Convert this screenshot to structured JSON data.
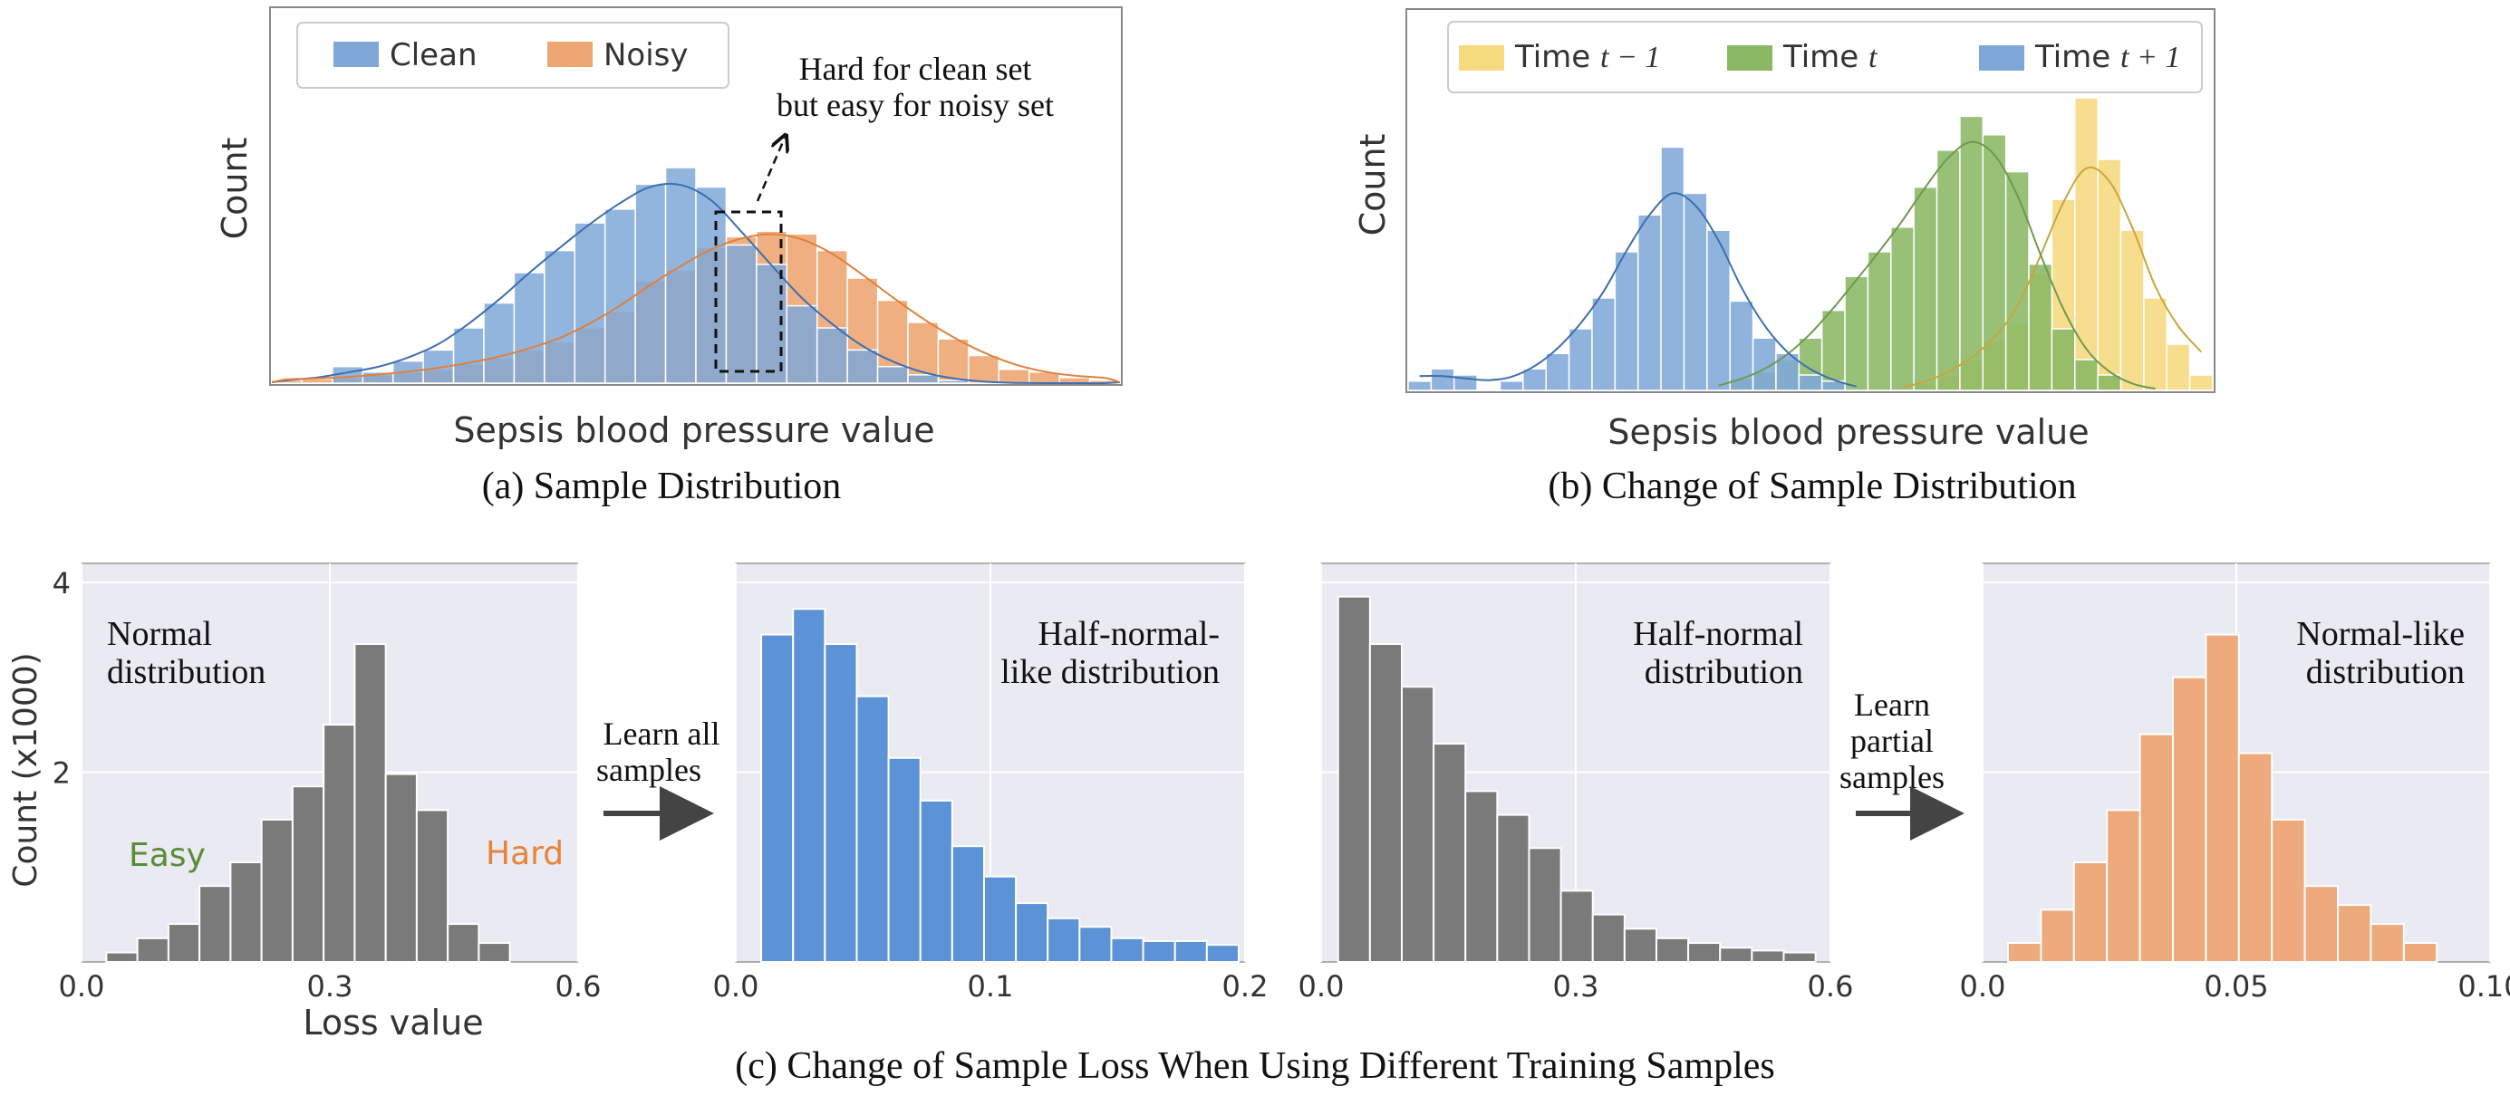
{
  "colors": {
    "panel_bg": "#eaeaf2",
    "grid": "#ffffff",
    "clean_blue": "#7fa8d8",
    "clean_line": "#3d6fb0",
    "noisy_orange": "#eea673",
    "noisy_line": "#e0803c",
    "yellow": "#f6da7e",
    "yellow_line": "#c9a63e",
    "green": "#8ab864",
    "green_line": "#6e9a4e",
    "gray": "#7a7a7a",
    "blue_solid": "#5b93d6",
    "orange_solid": "#eeaa7c",
    "easy_green": "#5a8c3a",
    "hard_orange": "#e8833a",
    "arrow": "#444444"
  },
  "chart_data": [
    {
      "id": "a",
      "type": "bar",
      "title": "(a) Sample Distribution",
      "xlabel": "Sepsis blood pressure value",
      "ylabel": "Count",
      "legend_position": "top-left",
      "annotation": [
        "Hard for clean set",
        "but easy for noisy set"
      ],
      "series": [
        {
          "name": "Clean",
          "color_key": "clean_blue",
          "line_key": "clean_line",
          "values": [
            0,
            0,
            0.06,
            0.04,
            0.08,
            0.12,
            0.2,
            0.29,
            0.4,
            0.48,
            0.58,
            0.63,
            0.72,
            0.78,
            0.71,
            0.5,
            0.43,
            0.28,
            0.2,
            0.12,
            0.06,
            0.03,
            0.01,
            0,
            0,
            0,
            0,
            0
          ]
        },
        {
          "name": "Noisy",
          "color_key": "noisy_orange",
          "line_key": "noisy_line",
          "values": [
            0.01,
            0.015,
            0.02,
            0.03,
            0.04,
            0.05,
            0.07,
            0.09,
            0.12,
            0.15,
            0.2,
            0.26,
            0.37,
            0.41,
            0.49,
            0.53,
            0.55,
            0.54,
            0.48,
            0.38,
            0.3,
            0.22,
            0.16,
            0.1,
            0.05,
            0.04,
            0.02,
            0.01
          ]
        }
      ]
    },
    {
      "id": "b",
      "type": "bar",
      "title": "(b) Change of Sample Distribution",
      "xlabel": "Sepsis blood pressure value",
      "ylabel": "Count",
      "legend_position": "top",
      "series": [
        {
          "name": "Time",
          "math": "t − 1",
          "color_key": "yellow",
          "line_key": "yellow_line",
          "values": [
            0,
            0,
            0,
            0,
            0,
            0,
            0,
            0,
            0,
            0,
            0,
            0,
            0,
            0,
            0,
            0,
            0,
            0,
            0,
            0,
            0,
            0,
            0.02,
            0.05,
            0.1,
            0.16,
            0.22,
            0.38,
            0.62,
            0.95,
            0.75,
            0.52,
            0.3,
            0.15,
            0.05
          ]
        },
        {
          "name": "Time",
          "math": "t",
          "color_key": "green",
          "line_key": "green_line",
          "values": [
            0,
            0,
            0,
            0,
            0,
            0,
            0,
            0,
            0,
            0,
            0,
            0,
            0,
            0,
            0.04,
            0.06,
            0.1,
            0.17,
            0.26,
            0.37,
            0.45,
            0.53,
            0.66,
            0.78,
            0.89,
            0.83,
            0.71,
            0.41,
            0.2,
            0.1,
            0.05,
            0,
            0,
            0,
            0
          ]
        },
        {
          "name": "Time",
          "math": "t + 1",
          "color_key": "clean_blue",
          "line_key": "clean_line",
          "values": [
            0.03,
            0.07,
            0.05,
            0,
            0.03,
            0.07,
            0.12,
            0.2,
            0.3,
            0.45,
            0.57,
            0.79,
            0.64,
            0.52,
            0.29,
            0.17,
            0.12,
            0.05,
            0.03,
            0,
            0,
            0,
            0,
            0,
            0,
            0,
            0,
            0,
            0,
            0,
            0,
            0,
            0,
            0,
            0
          ]
        }
      ]
    },
    {
      "id": "c1",
      "type": "bar",
      "xlabel": "Loss value",
      "ylabel": "Count (x1000)",
      "xlim": [
        0,
        0.6
      ],
      "ylim": [
        0,
        4
      ],
      "xticks": [
        "0.0",
        "0.3",
        "0.6"
      ],
      "yticks": [
        "4",
        "2"
      ],
      "bins_start": 0.03,
      "bin_width": 0.0375,
      "values": [
        0.1,
        0.25,
        0.4,
        0.8,
        1.05,
        1.5,
        1.85,
        2.5,
        3.35,
        1.98,
        1.6,
        0.4,
        0.2
      ],
      "color_key": "gray",
      "label": [
        "Normal",
        "distribution"
      ],
      "easy_label": "Easy",
      "hard_label": "Hard"
    },
    {
      "id": "c2",
      "type": "bar",
      "xlim": [
        0,
        0.2
      ],
      "xticks": [
        "0.0",
        "0.1",
        "0.2"
      ],
      "bins_start": 0.01,
      "bin_width": 0.0125,
      "values": [
        3.45,
        3.72,
        3.35,
        2.8,
        2.15,
        1.7,
        1.22,
        0.9,
        0.62,
        0.46,
        0.37,
        0.25,
        0.22,
        0.22,
        0.18
      ],
      "color_key": "blue_solid",
      "label": [
        "Half-normal-",
        "like distribution"
      ]
    },
    {
      "id": "c3",
      "type": "bar",
      "xlim": [
        0,
        0.6
      ],
      "xticks": [
        "0.0",
        "0.3",
        "0.6"
      ],
      "bins_start": 0.02,
      "bin_width": 0.0375,
      "values": [
        3.85,
        3.35,
        2.9,
        2.3,
        1.8,
        1.55,
        1.2,
        0.75,
        0.5,
        0.35,
        0.25,
        0.2,
        0.15,
        0.12,
        0.1
      ],
      "color_key": "gray",
      "label": [
        "Half-normal",
        "distribution"
      ]
    },
    {
      "id": "c4",
      "type": "bar",
      "xlim": [
        0,
        0.1
      ],
      "xticks": [
        "0.0",
        "0.05",
        "0.10"
      ],
      "bins_start": 0.005,
      "bin_width": 0.0065,
      "values": [
        0.2,
        0.55,
        1.05,
        1.6,
        2.4,
        3.0,
        3.45,
        2.2,
        1.5,
        0.8,
        0.6,
        0.4,
        0.2
      ],
      "color_key": "orange_solid",
      "label": [
        "Normal-like",
        "distribution"
      ]
    }
  ],
  "arrows": [
    {
      "text": [
        "Learn all",
        "samples"
      ]
    },
    {
      "text": [
        "Learn",
        "partial",
        "samples"
      ]
    }
  ],
  "caption_c": "(c) Change of Sample Loss When Using Different Training Samples"
}
